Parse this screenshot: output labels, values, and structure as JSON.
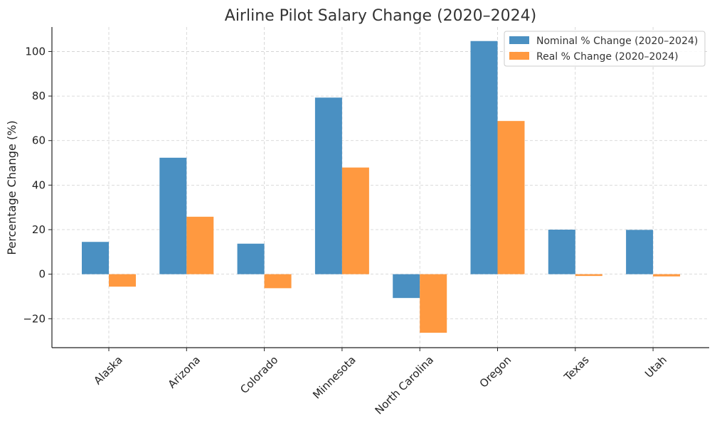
{
  "chart_data": {
    "type": "bar",
    "title": "Airline Pilot Salary Change (2020–2024)",
    "xlabel": "",
    "ylabel": "Percentage Change (%)",
    "categories": [
      "Alaska",
      "Arizona",
      "Colorado",
      "Minnesota",
      "North Carolina",
      "Oregon",
      "Texas",
      "Utah"
    ],
    "series": [
      {
        "name": "Nominal % Change (2020–2024)",
        "color": "#4a90c2",
        "values": [
          14.5,
          52.3,
          13.7,
          79.3,
          -10.7,
          104.7,
          20.0,
          19.9
        ]
      },
      {
        "name": "Real % Change (2020–2024)",
        "color": "#ff9940",
        "values": [
          -5.6,
          25.8,
          -6.3,
          47.9,
          -26.3,
          68.8,
          -0.8,
          -1.0
        ]
      }
    ],
    "ylim": [
      -33,
      111
    ],
    "yticks": [
      -20,
      0,
      20,
      40,
      60,
      80,
      100
    ],
    "ytick_labels": [
      "−20",
      "0",
      "20",
      "40",
      "60",
      "80",
      "100"
    ],
    "grid": true,
    "legend_position": "top-right"
  }
}
